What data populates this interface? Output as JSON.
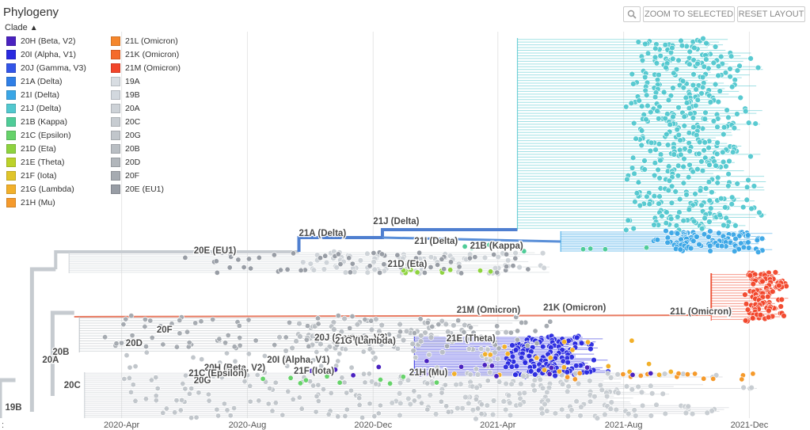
{
  "header": {
    "title": "Phylogeny",
    "clade_toggle": "Clade",
    "zoom_to_selected": "ZOOM TO SELECTED",
    "reset_layout": "RESET LAYOUT"
  },
  "icons": {
    "zoom": "magnifier-icon",
    "toggle": "chevron-up-icon"
  },
  "legend": {
    "items": [
      {
        "label": "20H (Beta, V2)",
        "color": "#4a22c0"
      },
      {
        "label": "20I (Alpha, V1)",
        "color": "#2a2ae0"
      },
      {
        "label": "20J (Gamma, V3)",
        "color": "#3355e8"
      },
      {
        "label": "21A (Delta)",
        "color": "#2f7fe6"
      },
      {
        "label": "21I (Delta)",
        "color": "#3aa6e6"
      },
      {
        "label": "21J (Delta)",
        "color": "#52c8cf"
      },
      {
        "label": "21B (Kappa)",
        "color": "#4fcc98"
      },
      {
        "label": "21C (Epsilon)",
        "color": "#66d26a"
      },
      {
        "label": "21D (Eta)",
        "color": "#8ed33f"
      },
      {
        "label": "21E (Theta)",
        "color": "#bcd22a"
      },
      {
        "label": "21F (Iota)",
        "color": "#e0c52a"
      },
      {
        "label": "21G (Lambda)",
        "color": "#f2b02a"
      },
      {
        "label": "21H (Mu)",
        "color": "#f59a2c"
      },
      {
        "label": "21L (Omicron)",
        "color": "#f5862c"
      },
      {
        "label": "21K (Omicron)",
        "color": "#f56b2b"
      },
      {
        "label": "21M (Omicron)",
        "color": "#f2452a"
      },
      {
        "label": "19A",
        "color": "#d8dde2"
      },
      {
        "label": "19B",
        "color": "#d2d8de"
      },
      {
        "label": "20A",
        "color": "#cdd2d7"
      },
      {
        "label": "20C",
        "color": "#c7ccd1"
      },
      {
        "label": "20G",
        "color": "#c1c6cb"
      },
      {
        "label": "20B",
        "color": "#b9bec3"
      },
      {
        "label": "20D",
        "color": "#b1b6bb"
      },
      {
        "label": "20F",
        "color": "#a6abb1"
      },
      {
        "label": "20E (EU1)",
        "color": "#989da5"
      }
    ]
  },
  "chart_data": {
    "type": "scatter",
    "title": "",
    "xlabel": "",
    "ylabel": "",
    "x_axis": {
      "ticks": [
        "2020-Apr",
        "2020-Aug",
        "2020-Dec",
        "2021-Apr",
        "2021-Aug",
        "2021-Dec"
      ],
      "tick_values": [
        "2020-04-01",
        "2020-08-01",
        "2020-12-01",
        "2021-04-01",
        "2021-08-01",
        "2021-12-01"
      ],
      "range": [
        "2019-12-05",
        "2022-01-15"
      ],
      "grid": true
    },
    "left_tick_label": ":",
    "clade_labels": [
      {
        "label": "19B",
        "date": "2019-12-10"
      },
      {
        "label": "20A",
        "date": "2020-01-15"
      },
      {
        "label": "20B",
        "date": "2020-01-25"
      },
      {
        "label": "20C",
        "date": "2020-02-05"
      },
      {
        "label": "20D",
        "date": "2020-04-05"
      },
      {
        "label": "20E (EU1)",
        "date": "2020-06-10"
      },
      {
        "label": "20F",
        "date": "2020-05-05"
      },
      {
        "label": "20G",
        "date": "2020-06-10"
      },
      {
        "label": "20H (Beta, V2)",
        "date": "2020-06-20"
      },
      {
        "label": "20I (Alpha, V1)",
        "date": "2020-08-20"
      },
      {
        "label": "20J (Gamma, V3)",
        "date": "2020-10-05"
      },
      {
        "label": "21A (Delta)",
        "date": "2020-09-20"
      },
      {
        "label": "21J (Delta)",
        "date": "2020-12-01"
      },
      {
        "label": "21I (Delta)",
        "date": "2021-01-10"
      },
      {
        "label": "21B (Kappa)",
        "date": "2021-03-05"
      },
      {
        "label": "21D (Eta)",
        "date": "2020-12-15"
      },
      {
        "label": "21M (Omicron)",
        "date": "2021-02-20"
      },
      {
        "label": "21K (Omicron)",
        "date": "2021-05-15"
      },
      {
        "label": "21L (Omicron)",
        "date": "2021-09-15"
      },
      {
        "label": "21E (Theta)",
        "date": "2021-02-10"
      },
      {
        "label": "21G (Lambda)",
        "date": "2020-10-25"
      },
      {
        "label": "21F (Iota)",
        "date": "2020-09-15"
      },
      {
        "label": "21C (Epsilon)",
        "date": "2020-06-05"
      },
      {
        "label": "21H (Mu)",
        "date": "2021-01-05"
      }
    ]
  }
}
